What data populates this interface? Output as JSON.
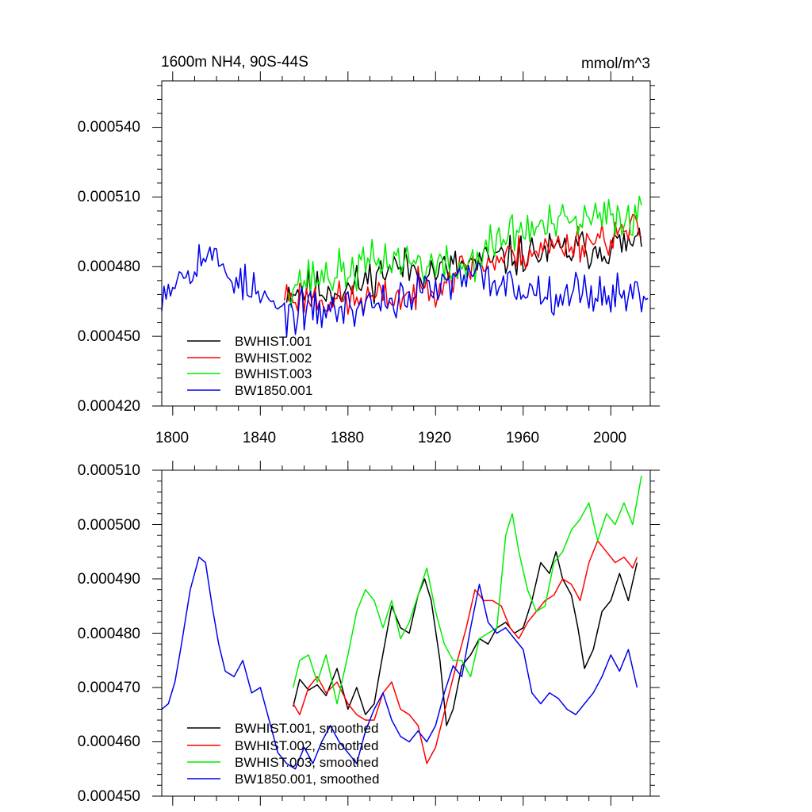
{
  "chart_data": [
    {
      "type": "line",
      "title_left": "1600m NH4, 90S-44S",
      "title_right": "mmol/m^3",
      "xlim": [
        1795,
        2018
      ],
      "ylim": [
        0.00042,
        0.00056
      ],
      "xticks": [
        "1800",
        "1840",
        "1880",
        "1920",
        "1960",
        "2000"
      ],
      "yticks": [
        "0.000420",
        "0.000450",
        "0.000480",
        "0.000510",
        "0.000540"
      ],
      "legend_position": "bottom-left",
      "series": [
        {
          "name": "BWHIST.001",
          "color": "#000000",
          "start": 1852,
          "end": 2014,
          "values": []
        },
        {
          "name": "BWHIST.002",
          "color": "#ff0000",
          "start": 1851,
          "end": 2014,
          "values": []
        },
        {
          "name": "BWHIST.003",
          "color": "#00ee00",
          "start": 1853,
          "end": 2014,
          "values": []
        },
        {
          "name": "BW1850.001",
          "color": "#0000ee",
          "start": 1795,
          "end": 2017,
          "values": []
        }
      ]
    },
    {
      "type": "line",
      "xlim": [
        1795,
        2018
      ],
      "ylim": [
        0.00045,
        0.00051
      ],
      "xticks": [
        "1800",
        "1840",
        "1880",
        "1920",
        "1960",
        "2000"
      ],
      "yticks": [
        "0.000450",
        "0.000460",
        "0.000470",
        "0.000480",
        "0.000490",
        "0.000500",
        "0.000510"
      ],
      "legend_position": "bottom-left",
      "series": [
        {
          "name": "BWHIST.001, smoothed",
          "color": "#000000",
          "x": [
            1855,
            1858,
            1862,
            1866,
            1870,
            1875,
            1880,
            1884,
            1888,
            1892,
            1895,
            1900,
            1904,
            1908,
            1912,
            1915,
            1918,
            1922,
            1925,
            1928,
            1932,
            1936,
            1940,
            1944,
            1948,
            1952,
            1956,
            1960,
            1964,
            1968,
            1972,
            1975,
            1978,
            1982,
            1985,
            1988,
            1992,
            1996,
            2000,
            2004,
            2008,
            2012
          ],
          "values": [
            0.0004665,
            0.0004715,
            0.0004695,
            0.0004705,
            0.0004685,
            0.0004735,
            0.000466,
            0.00047,
            0.000465,
            0.000467,
            0.000474,
            0.000485,
            0.000481,
            0.00048,
            0.000487,
            0.00049,
            0.000486,
            0.000475,
            0.000463,
            0.000466,
            0.000474,
            0.000476,
            0.000479,
            0.000478,
            0.000481,
            0.000482,
            0.00048,
            0.000481,
            0.000486,
            0.000493,
            0.000491,
            0.000495,
            0.00049,
            0.000487,
            0.000481,
            0.0004735,
            0.000477,
            0.000484,
            0.000486,
            0.000491,
            0.000486,
            0.000493
          ]
        },
        {
          "name": "BWHIST.002, smoothed",
          "color": "#ff0000",
          "x": [
            1855,
            1858,
            1862,
            1866,
            1870,
            1875,
            1880,
            1884,
            1888,
            1892,
            1896,
            1900,
            1904,
            1908,
            1912,
            1916,
            1920,
            1925,
            1930,
            1934,
            1938,
            1942,
            1946,
            1950,
            1954,
            1958,
            1962,
            1966,
            1970,
            1974,
            1978,
            1982,
            1986,
            1990,
            1994,
            1998,
            2002,
            2006,
            2010,
            2012
          ],
          "values": [
            0.000467,
            0.000465,
            0.00047,
            0.000472,
            0.000469,
            0.000471,
            0.000467,
            0.000465,
            0.000464,
            0.000464,
            0.000469,
            0.000471,
            0.000466,
            0.000465,
            0.000463,
            0.000456,
            0.000459,
            0.000467,
            0.000475,
            0.000481,
            0.000488,
            0.000486,
            0.000486,
            0.000485,
            0.000481,
            0.000479,
            0.000482,
            0.000484,
            0.000486,
            0.000487,
            0.00049,
            0.000489,
            0.000486,
            0.000493,
            0.000497,
            0.000495,
            0.000493,
            0.000494,
            0.000492,
            0.000494
          ]
        },
        {
          "name": "BWHIST.003, smoothed",
          "color": "#00ee00",
          "x": [
            1855,
            1858,
            1862,
            1866,
            1870,
            1875,
            1880,
            1884,
            1888,
            1892,
            1896,
            1900,
            1904,
            1908,
            1912,
            1916,
            1920,
            1924,
            1928,
            1932,
            1936,
            1940,
            1944,
            1948,
            1952,
            1955,
            1958,
            1962,
            1966,
            1970,
            1974,
            1978,
            1982,
            1986,
            1990,
            1994,
            1998,
            2002,
            2006,
            2010,
            2014
          ],
          "values": [
            0.00047,
            0.000475,
            0.000476,
            0.000471,
            0.000476,
            0.000467,
            0.000476,
            0.000484,
            0.000488,
            0.000486,
            0.000481,
            0.000486,
            0.000479,
            0.000482,
            0.000487,
            0.000492,
            0.000484,
            0.000478,
            0.000475,
            0.000475,
            0.000472,
            0.000479,
            0.00048,
            0.000481,
            0.000498,
            0.000502,
            0.000495,
            0.000488,
            0.000484,
            0.000485,
            0.000493,
            0.000495,
            0.000499,
            0.000501,
            0.000504,
            0.000497,
            0.000502,
            0.0005,
            0.000504,
            0.0005,
            0.000509
          ]
        },
        {
          "name": "BW1850.001, smoothed",
          "color": "#0000ee",
          "x": [
            1795,
            1798,
            1801,
            1804,
            1808,
            1812,
            1815,
            1818,
            1821,
            1824,
            1828,
            1832,
            1836,
            1840,
            1844,
            1848,
            1852,
            1856,
            1860,
            1864,
            1868,
            1872,
            1876,
            1880,
            1884,
            1888,
            1892,
            1896,
            1900,
            1904,
            1908,
            1912,
            1916,
            1920,
            1924,
            1928,
            1932,
            1936,
            1940,
            1944,
            1948,
            1952,
            1956,
            1960,
            1964,
            1968,
            1972,
            1976,
            1980,
            1984,
            1988,
            1992,
            1996,
            2000,
            2004,
            2008,
            2012
          ],
          "values": [
            0.000466,
            0.000467,
            0.000471,
            0.000478,
            0.000488,
            0.000494,
            0.000493,
            0.000485,
            0.000478,
            0.000473,
            0.000472,
            0.000475,
            0.000469,
            0.00047,
            0.000464,
            0.000458,
            0.000456,
            0.000455,
            0.000459,
            0.000456,
            0.00046,
            0.000463,
            0.00046,
            0.000458,
            0.000456,
            0.000462,
            0.000466,
            0.000469,
            0.000464,
            0.000461,
            0.00046,
            0.000462,
            0.00046,
            0.000463,
            0.000469,
            0.000474,
            0.000472,
            0.000481,
            0.000489,
            0.000482,
            0.00048,
            0.000481,
            0.000479,
            0.000477,
            0.000469,
            0.000467,
            0.000469,
            0.000468,
            0.000466,
            0.000465,
            0.000467,
            0.000469,
            0.000472,
            0.000476,
            0.000473,
            0.000477,
            0.00047
          ]
        }
      ]
    }
  ]
}
